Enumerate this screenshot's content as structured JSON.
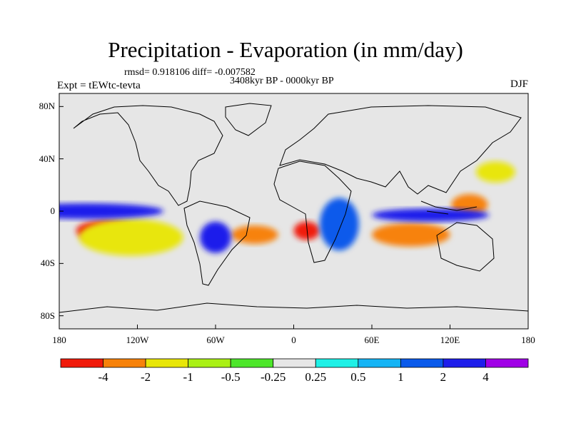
{
  "title": "Precipitation - Evaporation (in mm/day)",
  "stats_text": "rmsd= 0.918106  diff= -0.007582",
  "period_text": "3408kyr BP - 0000kyr BP",
  "experiment_text": "Expt = tEWtc-tevta",
  "season_text": "DJF",
  "map": {
    "projection": "cylindrical-equidistant",
    "lon_range": [
      -180,
      180
    ],
    "lat_range": [
      -90,
      90
    ],
    "lat_ticks": [
      {
        "value": 80,
        "label": "80N"
      },
      {
        "value": 40,
        "label": "40N"
      },
      {
        "value": 0,
        "label": "0"
      },
      {
        "value": -40,
        "label": "40S"
      },
      {
        "value": -80,
        "label": "80S"
      }
    ],
    "lon_ticks": [
      {
        "value": -180,
        "label": "180"
      },
      {
        "value": -120,
        "label": "120W"
      },
      {
        "value": -60,
        "label": "60W"
      },
      {
        "value": 0,
        "label": "0"
      },
      {
        "value": 60,
        "label": "60E"
      },
      {
        "value": 120,
        "label": "120E"
      },
      {
        "value": 180,
        "label": "180"
      }
    ],
    "background_color": "#e6e6e6",
    "coastline_color": "#000000"
  },
  "chart_data": {
    "type": "heatmap",
    "variable": "P-E difference",
    "units": "mm/day",
    "contour_levels": [
      -4,
      -2,
      -1,
      -0.5,
      -0.25,
      0.25,
      0.5,
      1,
      2,
      4
    ],
    "level_labels": [
      "-4",
      "-2",
      "-1",
      "-0.5",
      "-0.25",
      "0.25",
      "0.5",
      "1",
      "2",
      "4"
    ],
    "colors": [
      "#f01a0a",
      "#f7820a",
      "#e8e608",
      "#aaf015",
      "#4de62a",
      "#e6e6e6",
      "#1ff0e6",
      "#15b4f5",
      "#0a5aeb",
      "#1e1eeb",
      "#a000e6"
    ],
    "fields": [
      {
        "lon": -145,
        "lat": -15,
        "value": -5,
        "rx": 22,
        "ry": 8
      },
      {
        "lon": -125,
        "lat": -20,
        "value": -1.5,
        "rx": 40,
        "ry": 14
      },
      {
        "lon": -30,
        "lat": -18,
        "value": -2.5,
        "rx": 18,
        "ry": 7
      },
      {
        "lon": 10,
        "lat": -15,
        "value": -4.5,
        "rx": 10,
        "ry": 7
      },
      {
        "lon": 90,
        "lat": -18,
        "value": -2.5,
        "rx": 30,
        "ry": 9
      },
      {
        "lon": 135,
        "lat": 5,
        "value": -2.5,
        "rx": 14,
        "ry": 8
      },
      {
        "lon": 155,
        "lat": 30,
        "value": -1.5,
        "rx": 15,
        "ry": 8
      },
      {
        "lon": -160,
        "lat": 0,
        "value": 3,
        "rx": 60,
        "ry": 6
      },
      {
        "lon": 105,
        "lat": -3,
        "value": 3,
        "rx": 45,
        "ry": 5
      },
      {
        "lon": -60,
        "lat": -20,
        "value": 2.5,
        "rx": 12,
        "ry": 12
      },
      {
        "lon": 35,
        "lat": -10,
        "value": 1.5,
        "rx": 15,
        "ry": 20
      }
    ]
  },
  "palette": {
    "land_outline": "#000000",
    "axis_color": "#000000"
  }
}
